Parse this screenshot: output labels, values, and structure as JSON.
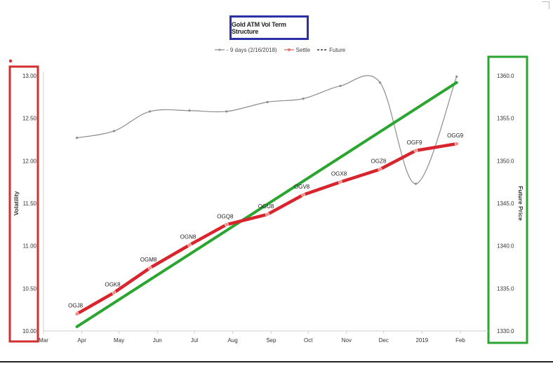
{
  "chart_data": {
    "type": "line",
    "title": "Gold ATM Vol Term Structure",
    "ylabel": "Volatility",
    "y2label": "Future Price",
    "ylim": [
      10.0,
      13.0
    ],
    "y2lim": [
      1330.0,
      1360.0
    ],
    "x_ticks": [
      "Mar",
      "Apr",
      "May",
      "Jun",
      "Jul",
      "Aug",
      "Sep",
      "Oct",
      "Nov",
      "Dec",
      "2019",
      "Feb"
    ],
    "y_ticks": [
      "10.00",
      "10.50",
      "11.00",
      "11.50",
      "12.00",
      "12.50",
      "13.00"
    ],
    "y2_ticks": [
      "1330.0",
      "1335.0",
      "1340.0",
      "1345.0",
      "1350.0",
      "1355.0",
      "1360.0"
    ],
    "legend_position": "top-center",
    "series": [
      {
        "name": "- 9 days (2/16/2018)",
        "color": "#8c8c8c",
        "x": [
          "2018-03-27",
          "2018-04-26",
          "2018-05-25",
          "2018-06-26",
          "2018-07-26",
          "2018-08-28",
          "2018-09-26",
          "2018-10-26",
          "2018-11-27",
          "2018-12-26",
          "2019-01-28"
        ],
        "values": [
          12.27,
          12.35,
          12.58,
          12.59,
          12.58,
          12.69,
          12.73,
          12.88,
          12.92,
          11.73,
          12.99
        ]
      },
      {
        "name": "Settle",
        "color": "#d9232d",
        "x": [
          "2018-03-27",
          "2018-04-26",
          "2018-05-25",
          "2018-06-26",
          "2018-07-26",
          "2018-08-28",
          "2018-09-26",
          "2018-10-26",
          "2018-11-27",
          "2018-12-26",
          "2019-01-28"
        ],
        "values": [
          10.2,
          10.45,
          10.74,
          11.01,
          11.25,
          11.37,
          11.6,
          11.75,
          11.9,
          12.12,
          12.2
        ],
        "point_labels": [
          "OGJ8",
          "OGK8",
          "OGM8",
          "OGN8",
          "OGQ8",
          "OGU8",
          "OGV8",
          "OGX8",
          "OGZ8",
          "OGF9",
          "OGG9"
        ]
      },
      {
        "name": "Future",
        "color": "#2aa52f",
        "axis": "right",
        "x": [
          "2018-03-27",
          "2019-01-28"
        ],
        "values": [
          1330.5,
          1359.2
        ]
      }
    ]
  }
}
